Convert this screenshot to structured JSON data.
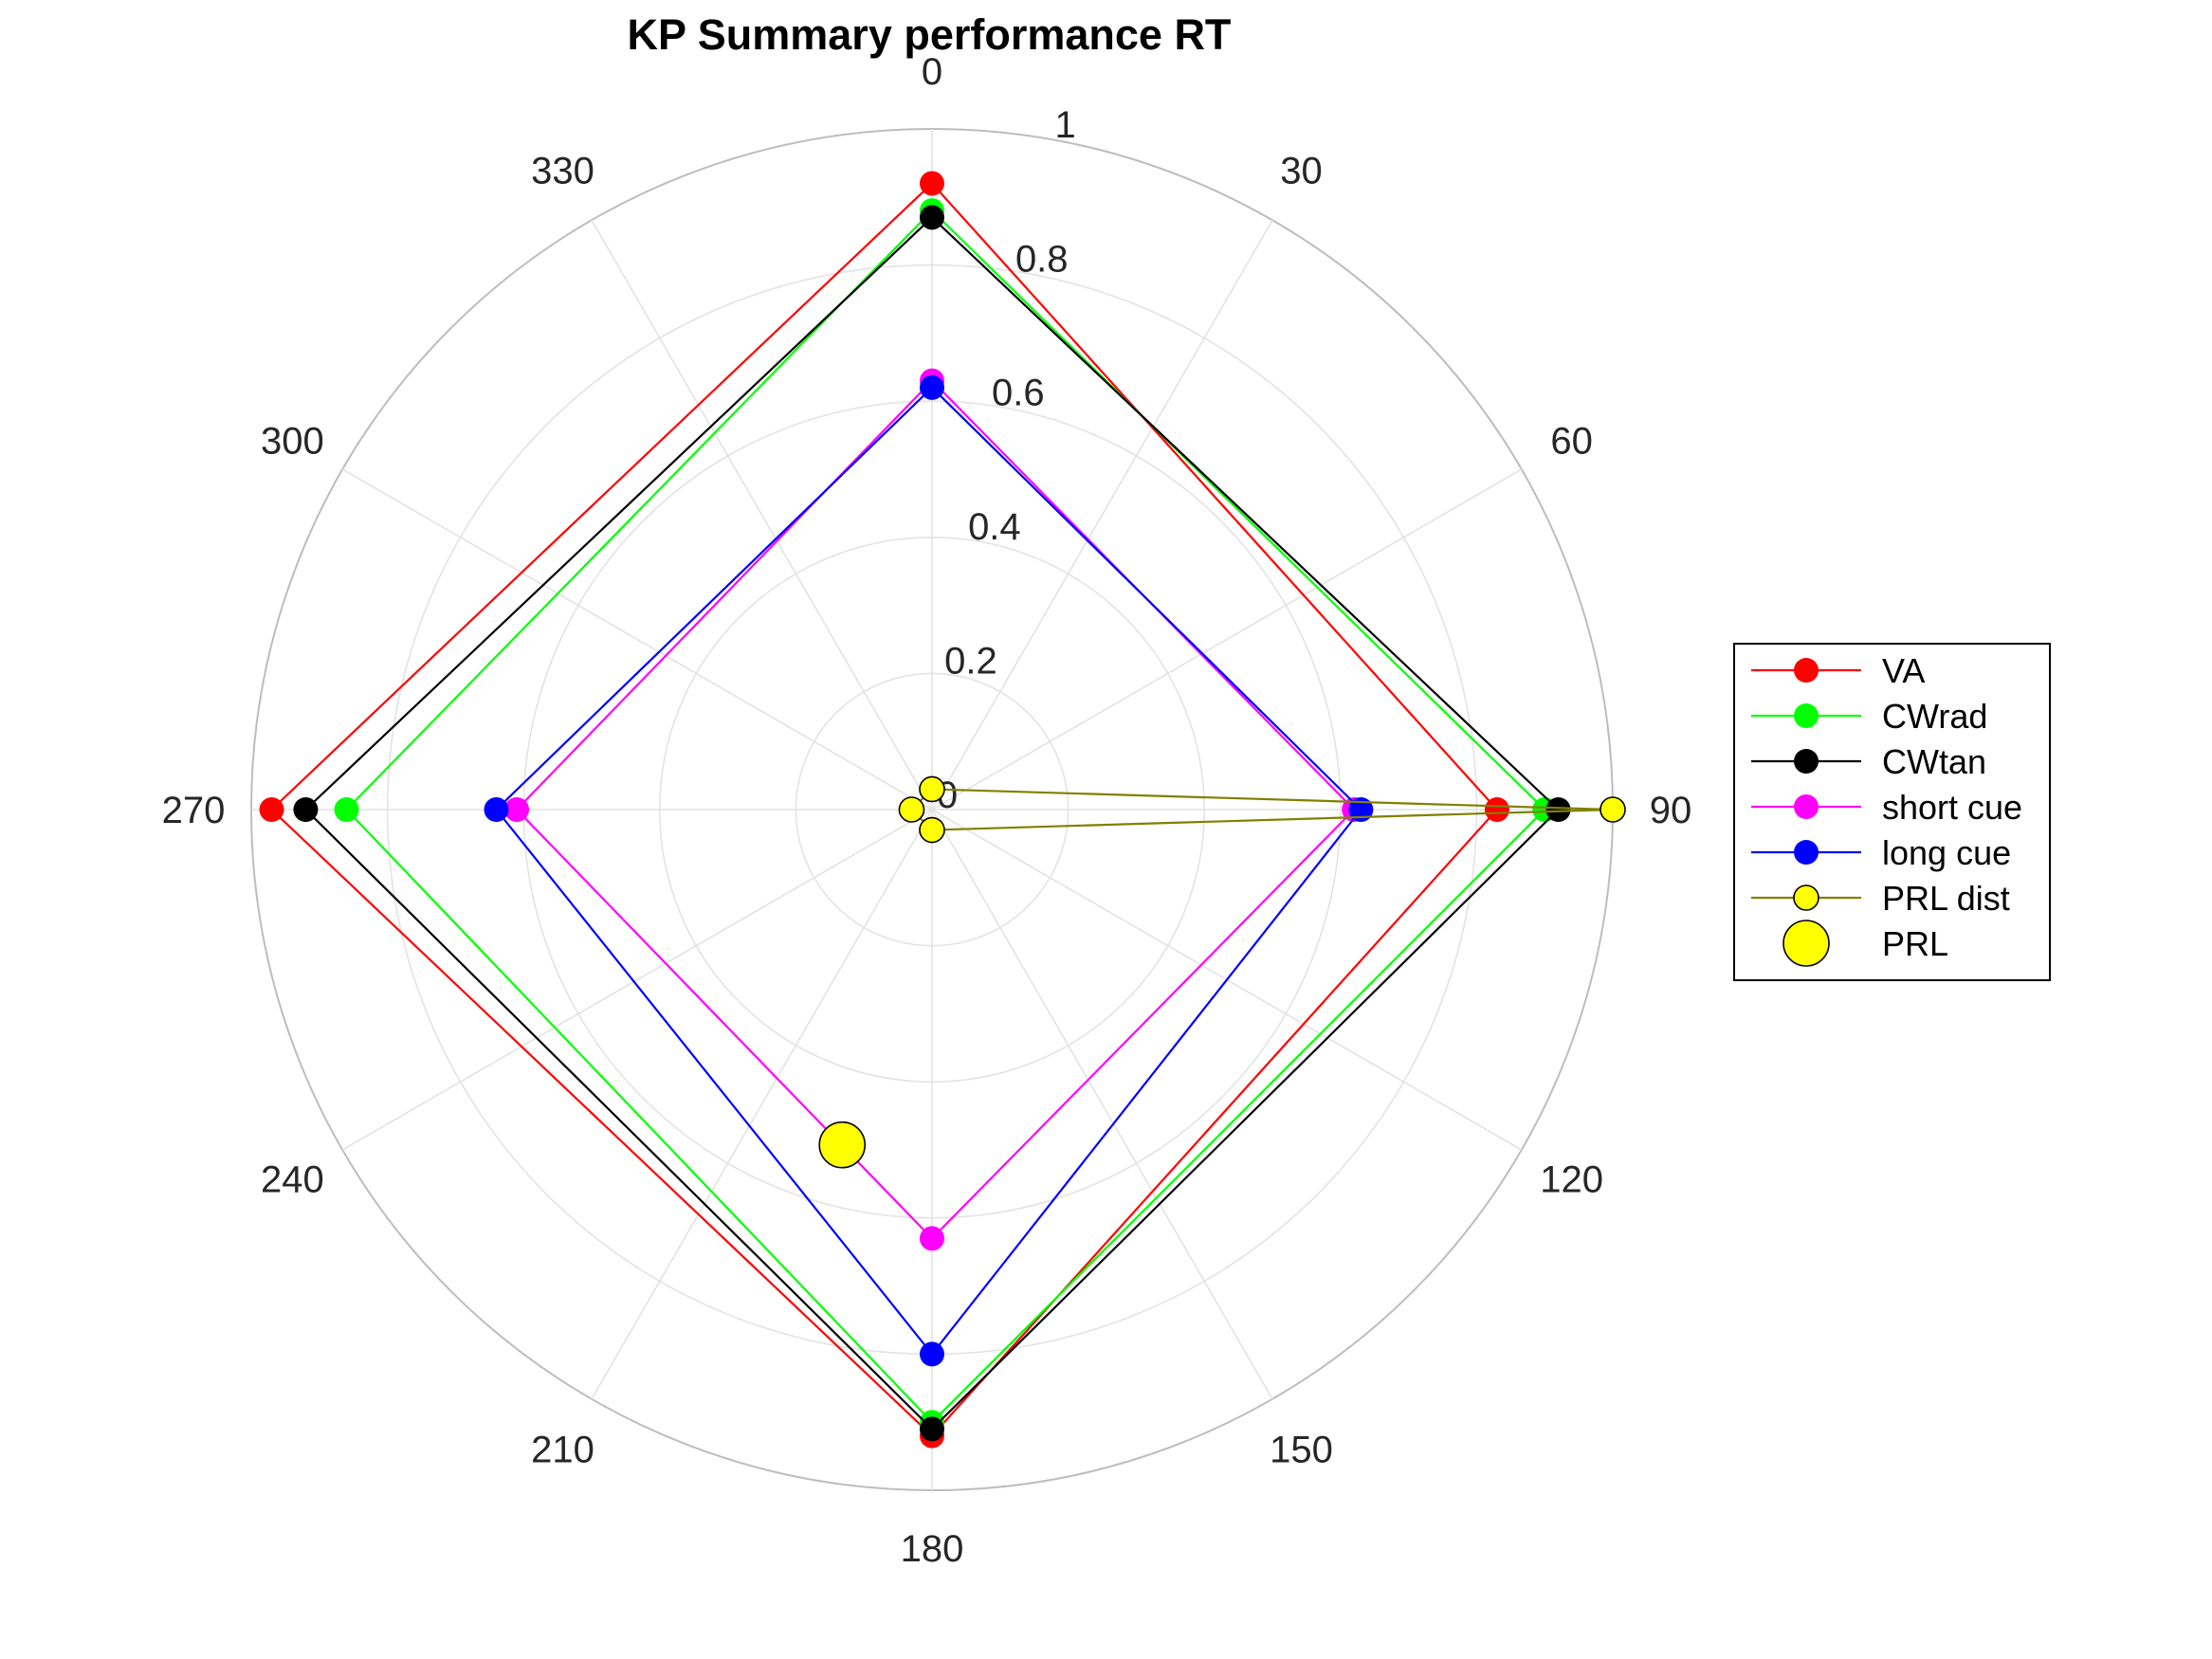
{
  "chart_data": {
    "type": "polar-line",
    "title": "KP Summary performance RT",
    "theta_direction": "clockwise",
    "theta_zero": "top",
    "theta_ticks": [
      "0",
      "30",
      "60",
      "90",
      "120",
      "150",
      "180",
      "210",
      "240",
      "270",
      "300",
      "330"
    ],
    "r_ticks": [
      "0",
      "0.2",
      "0.4",
      "0.6",
      "0.8",
      "1"
    ],
    "rlim": [
      0,
      1
    ],
    "grid": true,
    "legend_position": "right",
    "series": [
      {
        "name": "VA",
        "color": "#ff0000",
        "theta": [
          0,
          90,
          180,
          270,
          0
        ],
        "r": [
          0.92,
          0.83,
          0.92,
          0.97,
          0.92
        ]
      },
      {
        "name": "CWrad",
        "color": "#00ff00",
        "theta": [
          0,
          90,
          180,
          270,
          0
        ],
        "r": [
          0.88,
          0.9,
          0.9,
          0.86,
          0.88
        ]
      },
      {
        "name": "CWtan",
        "color": "#000000",
        "theta": [
          0,
          90,
          180,
          270,
          0
        ],
        "r": [
          0.87,
          0.92,
          0.91,
          0.92,
          0.87
        ]
      },
      {
        "name": "short cue",
        "color": "#ff00ff",
        "theta": [
          0,
          90,
          180,
          270,
          0
        ],
        "r": [
          0.63,
          0.62,
          0.63,
          0.61,
          0.63
        ]
      },
      {
        "name": "long cue",
        "color": "#0000ff",
        "theta": [
          0,
          90,
          180,
          270,
          0
        ],
        "r": [
          0.62,
          0.63,
          0.8,
          0.64,
          0.62
        ]
      },
      {
        "name": "PRL dist",
        "color": "#ffff00",
        "line_color": "#808000",
        "theta": [
          0,
          90,
          180,
          270,
          0
        ],
        "r": [
          0.03,
          1.0,
          0.03,
          0.03,
          0.03
        ]
      },
      {
        "name": "PRL",
        "color": "#ffff00",
        "marker": "large",
        "theta": [
          195
        ],
        "r": [
          0.51
        ]
      }
    ]
  }
}
